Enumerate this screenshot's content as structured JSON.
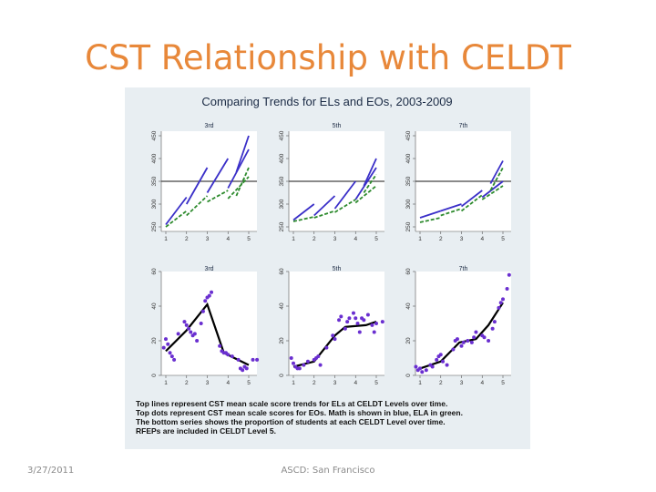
{
  "slide": {
    "title": "CST Relationship with CELDT",
    "date": "3/27/2011",
    "venue": "ASCD: San Francisco"
  },
  "colors": {
    "title": "#e8883a",
    "math": "#3a2fc8",
    "ela": "#2e8b2e",
    "dots": "#6a2fd0",
    "fit": "#000000",
    "reference": "#444444",
    "figure_bg": "#e8eef2",
    "panel_bg": "#ffffff"
  },
  "chart_data": [
    {
      "type": "line",
      "title": "Comparing Trends for ELs and EOs, 2003-2009",
      "row": "top",
      "x_ticks": [
        "1",
        "2",
        "3",
        "4",
        "5"
      ],
      "y_ticks": [
        "250",
        "300",
        "350",
        "400",
        "450"
      ],
      "ylim": [
        240,
        460
      ],
      "reference_line": 350,
      "panels": [
        {
          "label": "3rd",
          "series": [
            {
              "name": "Math",
              "segments": [
                [
                  [
                    1,
                    255
                  ],
                  [
                    2,
                    315
                  ]
                ],
                [
                  [
                    2,
                    300
                  ],
                  [
                    3,
                    380
                  ]
                ],
                [
                  [
                    3,
                    325
                  ],
                  [
                    4,
                    400
                  ]
                ],
                [
                  [
                    4,
                    335
                  ],
                  [
                    5,
                    420
                  ]
                ],
                [
                  [
                    4.4,
                    370
                  ],
                  [
                    5,
                    450
                  ]
                ]
              ]
            },
            {
              "name": "ELA",
              "segments": [
                [
                  [
                    1,
                    250
                  ],
                  [
                    2,
                    285
                  ]
                ],
                [
                  [
                    2,
                    275
                  ],
                  [
                    3,
                    318
                  ]
                ],
                [
                  [
                    3,
                    305
                  ],
                  [
                    4,
                    330
                  ]
                ],
                [
                  [
                    4,
                    312
                  ],
                  [
                    5,
                    360
                  ]
                ],
                [
                  [
                    4.4,
                    318
                  ],
                  [
                    5,
                    380
                  ]
                ]
              ]
            }
          ]
        },
        {
          "label": "5th",
          "series": [
            {
              "name": "Math",
              "segments": [
                [
                  [
                    1,
                    265
                  ],
                  [
                    2,
                    300
                  ]
                ],
                [
                  [
                    2,
                    275
                  ],
                  [
                    3,
                    318
                  ]
                ],
                [
                  [
                    3,
                    290
                  ],
                  [
                    4,
                    350
                  ]
                ],
                [
                  [
                    4,
                    310
                  ],
                  [
                    5,
                    380
                  ]
                ],
                [
                  [
                    4.4,
                    340
                  ],
                  [
                    5,
                    400
                  ]
                ]
              ]
            },
            {
              "name": "ELA",
              "segments": [
                [
                  [
                    1,
                    262
                  ],
                  [
                    2,
                    272
                  ]
                ],
                [
                  [
                    2,
                    270
                  ],
                  [
                    3,
                    285
                  ]
                ],
                [
                  [
                    3,
                    282
                  ],
                  [
                    4,
                    310
                  ]
                ],
                [
                  [
                    4,
                    303
                  ],
                  [
                    5,
                    340
                  ]
                ],
                [
                  [
                    4.4,
                    325
                  ],
                  [
                    5,
                    365
                  ]
                ]
              ]
            }
          ]
        },
        {
          "label": "7th",
          "series": [
            {
              "name": "Math",
              "segments": [
                [
                  [
                    1,
                    270
                  ],
                  [
                    2,
                    285
                  ]
                ],
                [
                  [
                    2,
                    285
                  ],
                  [
                    3,
                    300
                  ]
                ],
                [
                  [
                    3,
                    295
                  ],
                  [
                    4,
                    330
                  ]
                ],
                [
                  [
                    4,
                    315
                  ],
                  [
                    5,
                    350
                  ]
                ],
                [
                  [
                    4.4,
                    345
                  ],
                  [
                    5,
                    395
                  ]
                ]
              ]
            },
            {
              "name": "ELA",
              "segments": [
                [
                  [
                    1,
                    260
                  ],
                  [
                    2,
                    270
                  ]
                ],
                [
                  [
                    2,
                    275
                  ],
                  [
                    3,
                    290
                  ]
                ],
                [
                  [
                    3,
                    285
                  ],
                  [
                    4,
                    320
                  ]
                ],
                [
                  [
                    4,
                    310
                  ],
                  [
                    5,
                    340
                  ]
                ],
                [
                  [
                    4.4,
                    330
                  ],
                  [
                    5,
                    380
                  ]
                ]
              ]
            }
          ]
        }
      ]
    },
    {
      "type": "scatter",
      "row": "bottom",
      "x_ticks": [
        "1",
        "2",
        "3",
        "4",
        "5"
      ],
      "y_ticks": [
        "0",
        "20",
        "40",
        "60"
      ],
      "ylim": [
        0,
        60
      ],
      "panels": [
        {
          "label": "3rd",
          "fit_line": [
            [
              1,
              14
            ],
            [
              2,
              26
            ],
            [
              3,
              41
            ],
            [
              3.8,
              13
            ],
            [
              5,
              6
            ]
          ],
          "points": [
            [
              0.9,
              16
            ],
            [
              1.0,
              21
            ],
            [
              1.1,
              18
            ],
            [
              1.2,
              13
            ],
            [
              1.3,
              11
            ],
            [
              1.4,
              9
            ],
            [
              1.6,
              24
            ],
            [
              1.9,
              31
            ],
            [
              2.0,
              29
            ],
            [
              2.1,
              27
            ],
            [
              2.2,
              25
            ],
            [
              2.3,
              23
            ],
            [
              2.4,
              24
            ],
            [
              2.5,
              20
            ],
            [
              2.7,
              30
            ],
            [
              2.8,
              37
            ],
            [
              2.9,
              43
            ],
            [
              3.0,
              45
            ],
            [
              3.1,
              46
            ],
            [
              3.2,
              48
            ],
            [
              3.6,
              17
            ],
            [
              3.7,
              14
            ],
            [
              3.8,
              13
            ],
            [
              3.9,
              13
            ],
            [
              4.0,
              12
            ],
            [
              4.2,
              11
            ],
            [
              4.5,
              9
            ],
            [
              4.6,
              4
            ],
            [
              4.7,
              3
            ],
            [
              4.8,
              5
            ],
            [
              4.9,
              4
            ],
            [
              5.2,
              9
            ],
            [
              5.4,
              9
            ]
          ]
        },
        {
          "label": "5th",
          "fit_line": [
            [
              1,
              5
            ],
            [
              2,
              8
            ],
            [
              3,
              23
            ],
            [
              3.5,
              28
            ],
            [
              4.5,
              29
            ],
            [
              5,
              31
            ]
          ],
          "points": [
            [
              0.9,
              10
            ],
            [
              1.0,
              7
            ],
            [
              1.1,
              5
            ],
            [
              1.2,
              4
            ],
            [
              1.3,
              4
            ],
            [
              1.5,
              6
            ],
            [
              1.7,
              8
            ],
            [
              2.0,
              9
            ],
            [
              2.1,
              10
            ],
            [
              2.2,
              11
            ],
            [
              2.3,
              6
            ],
            [
              2.6,
              16
            ],
            [
              2.9,
              23
            ],
            [
              3.0,
              21
            ],
            [
              3.2,
              32
            ],
            [
              3.3,
              34
            ],
            [
              3.5,
              27
            ],
            [
              3.6,
              31
            ],
            [
              3.7,
              33
            ],
            [
              3.9,
              36
            ],
            [
              4.0,
              33
            ],
            [
              4.1,
              30
            ],
            [
              4.2,
              25
            ],
            [
              4.3,
              33
            ],
            [
              4.4,
              32
            ],
            [
              4.6,
              35
            ],
            [
              4.8,
              29
            ],
            [
              4.9,
              25
            ],
            [
              5.0,
              30
            ],
            [
              5.3,
              31
            ]
          ]
        },
        {
          "label": "7th",
          "fit_line": [
            [
              1,
              4
            ],
            [
              2,
              8
            ],
            [
              2.9,
              19
            ],
            [
              3.7,
              21
            ],
            [
              4.3,
              29
            ],
            [
              5,
              42
            ]
          ],
          "points": [
            [
              0.8,
              5
            ],
            [
              0.9,
              3
            ],
            [
              1.0,
              4
            ],
            [
              1.1,
              2
            ],
            [
              1.3,
              3
            ],
            [
              1.5,
              6
            ],
            [
              1.6,
              5
            ],
            [
              1.8,
              9
            ],
            [
              1.9,
              11
            ],
            [
              2.0,
              12
            ],
            [
              2.1,
              8
            ],
            [
              2.3,
              6
            ],
            [
              2.6,
              15
            ],
            [
              2.7,
              20
            ],
            [
              2.8,
              21
            ],
            [
              3.0,
              17
            ],
            [
              3.1,
              19
            ],
            [
              3.3,
              20
            ],
            [
              3.5,
              19
            ],
            [
              3.6,
              22
            ],
            [
              3.7,
              25
            ],
            [
              4.0,
              23
            ],
            [
              4.1,
              22
            ],
            [
              4.3,
              20
            ],
            [
              4.5,
              27
            ],
            [
              4.6,
              31
            ],
            [
              4.8,
              39
            ],
            [
              4.9,
              42
            ],
            [
              5.0,
              44
            ],
            [
              5.2,
              50
            ],
            [
              5.3,
              58
            ]
          ]
        }
      ]
    }
  ],
  "caption": [
    "Top lines represent CST mean scale score trends for ELs at CELDT Levels over time.",
    "Top dots represent CST mean scale scores for EOs.  Math is shown in blue, ELA in green.",
    "The bottom series shows the proportion of students at each CELDT Level over time.",
    "RFEPs are included in CELDT Level 5."
  ]
}
